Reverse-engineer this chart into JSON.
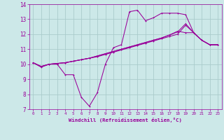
{
  "background_color": "#cce8e8",
  "grid_color": "#aacccc",
  "line_color": "#990099",
  "xlabel": "Windchill (Refroidissement éolien,°C)",
  "xlim": [
    -0.5,
    23.5
  ],
  "ylim": [
    7,
    14
  ],
  "xticks": [
    0,
    1,
    2,
    3,
    4,
    5,
    6,
    7,
    8,
    9,
    10,
    11,
    12,
    13,
    14,
    15,
    16,
    17,
    18,
    19,
    20,
    21,
    22,
    23
  ],
  "yticks": [
    7,
    8,
    9,
    10,
    11,
    12,
    13,
    14
  ],
  "line1_x": [
    0,
    1,
    2,
    3,
    4,
    5,
    6,
    7,
    8,
    9,
    10,
    11,
    12,
    13,
    14,
    15,
    16,
    17,
    18,
    19,
    20,
    21,
    22,
    23
  ],
  "line1_y": [
    10.1,
    9.8,
    10.0,
    10.0,
    9.3,
    9.3,
    7.8,
    7.2,
    8.1,
    10.0,
    11.1,
    11.3,
    13.5,
    13.6,
    12.9,
    13.1,
    13.4,
    13.4,
    13.4,
    13.3,
    12.1,
    11.6,
    11.3,
    11.3
  ],
  "line2_x": [
    0,
    1,
    2,
    3,
    4,
    5,
    6,
    7,
    8,
    9,
    10,
    11,
    12,
    13,
    14,
    15,
    16,
    17,
    18,
    19,
    20,
    21,
    22,
    23
  ],
  "line2_y": [
    10.1,
    9.85,
    10.0,
    10.05,
    10.1,
    10.2,
    10.3,
    10.4,
    10.5,
    10.65,
    10.8,
    10.95,
    11.1,
    11.25,
    11.4,
    11.55,
    11.7,
    11.85,
    12.0,
    12.6,
    12.1,
    11.6,
    11.3,
    11.3
  ],
  "line3_x": [
    0,
    1,
    2,
    3,
    4,
    5,
    6,
    7,
    8,
    9,
    10,
    11,
    12,
    13,
    14,
    15,
    16,
    17,
    18,
    19,
    20,
    21,
    22,
    23
  ],
  "line3_y": [
    10.1,
    9.85,
    10.0,
    10.05,
    10.1,
    10.2,
    10.3,
    10.4,
    10.55,
    10.7,
    10.85,
    11.0,
    11.15,
    11.3,
    11.45,
    11.6,
    11.75,
    11.95,
    12.15,
    12.7,
    12.1,
    11.6,
    11.3,
    11.3
  ],
  "line4_x": [
    0,
    1,
    2,
    3,
    4,
    5,
    6,
    7,
    8,
    9,
    10,
    11,
    12,
    13,
    14,
    15,
    16,
    17,
    18,
    19,
    20,
    21,
    22,
    23
  ],
  "line4_y": [
    10.1,
    9.85,
    10.0,
    10.05,
    10.1,
    10.2,
    10.3,
    10.4,
    10.55,
    10.7,
    10.85,
    11.0,
    11.15,
    11.3,
    11.45,
    11.6,
    11.75,
    11.95,
    12.2,
    12.1,
    12.1,
    11.6,
    11.3,
    11.3
  ]
}
